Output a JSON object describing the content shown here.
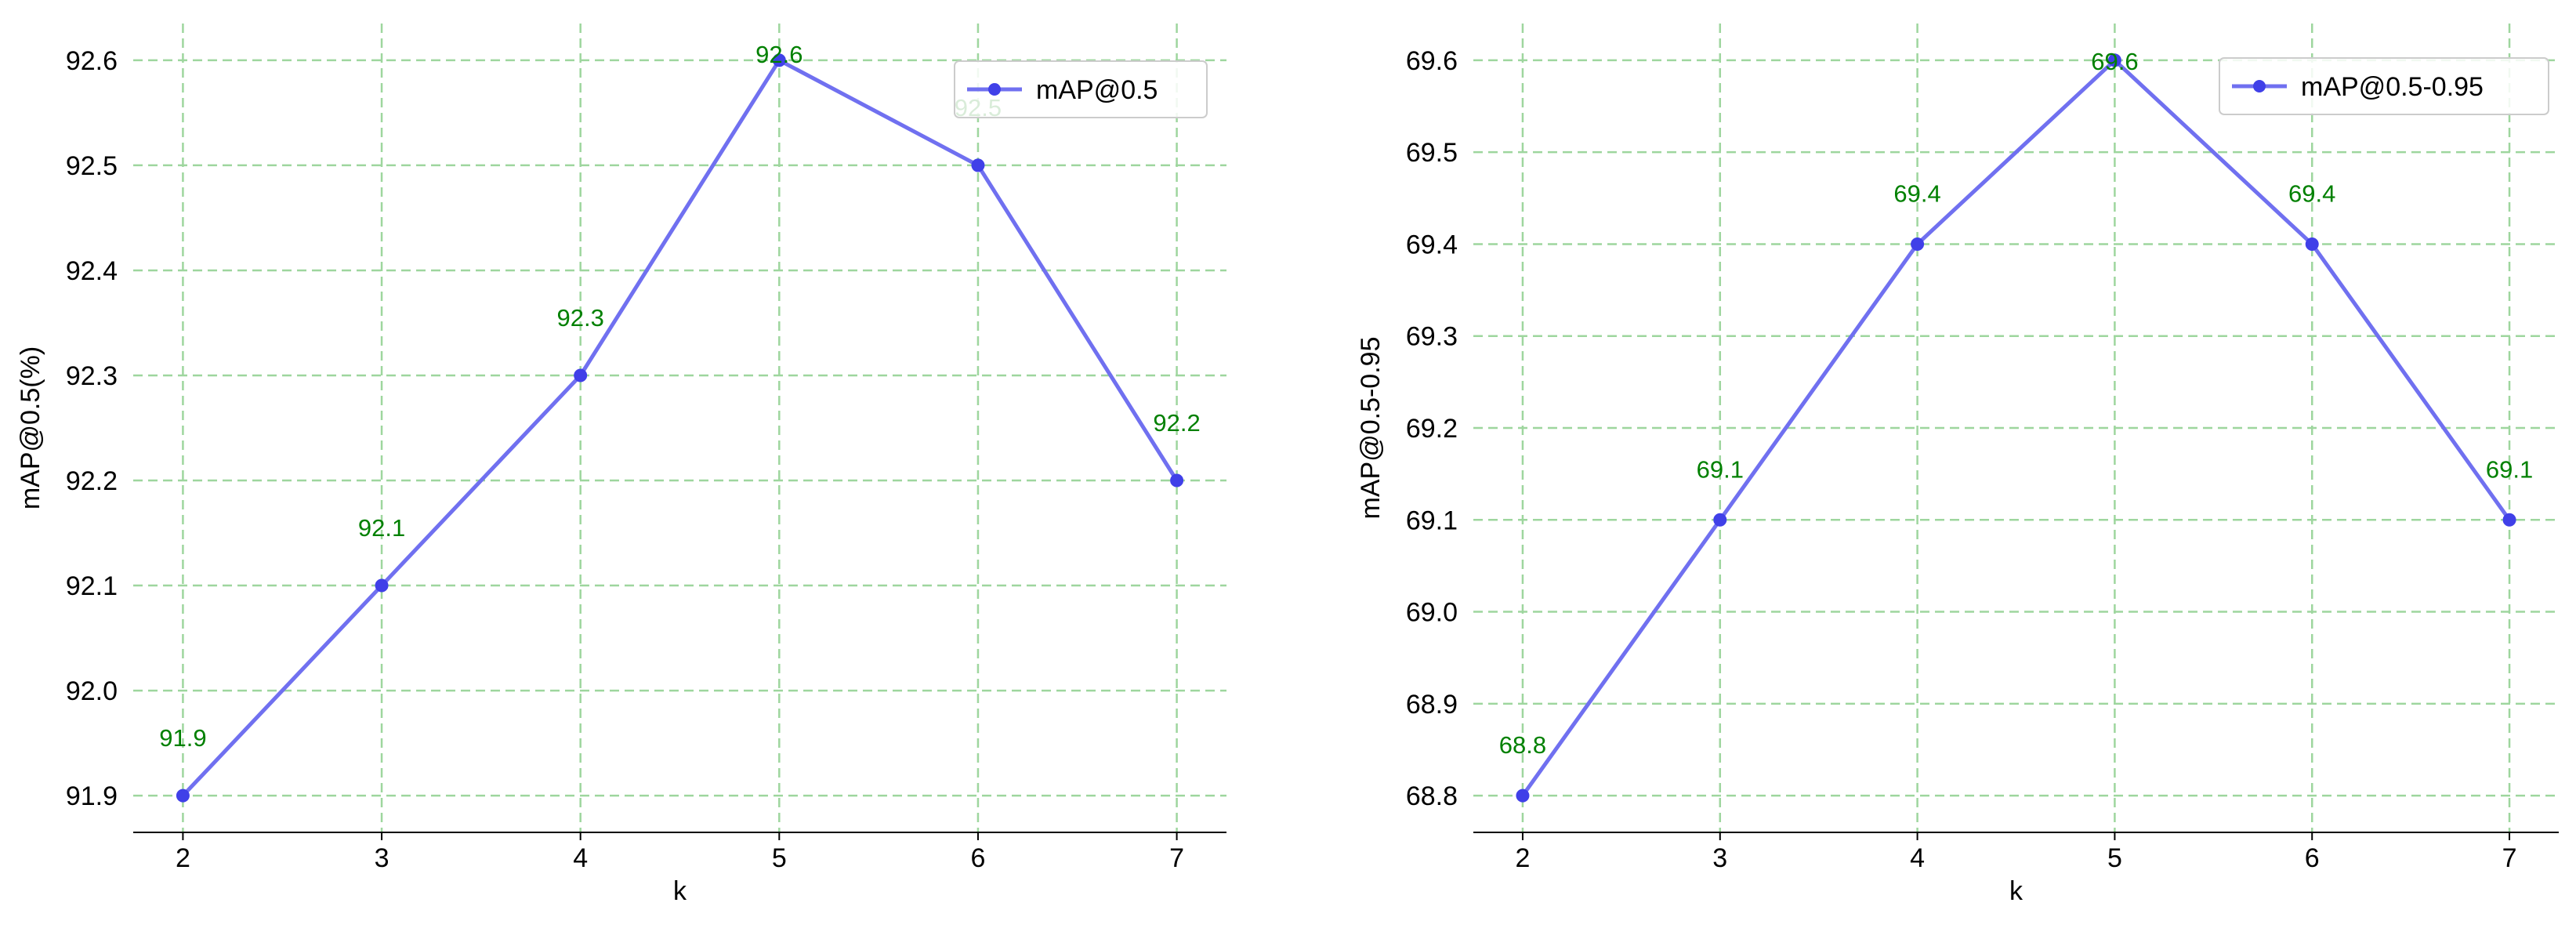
{
  "chart_data": [
    {
      "type": "line",
      "x": [
        2,
        3,
        4,
        5,
        6,
        7
      ],
      "series": [
        {
          "name": "mAP@0.5",
          "values": [
            91.9,
            92.1,
            92.3,
            92.6,
            92.5,
            92.2
          ]
        }
      ],
      "data_labels": [
        "91.9",
        "92.1",
        "92.3",
        "92.6",
        "92.5",
        "92.2"
      ],
      "xlabel": "k",
      "ylabel": "mAP@0.5(%)",
      "x_ticks": [
        "2",
        "3",
        "4",
        "5",
        "6",
        "7"
      ],
      "y_ticks": [
        "91.9",
        "92.0",
        "92.1",
        "92.2",
        "92.3",
        "92.4",
        "92.5",
        "92.6"
      ],
      "xlim": [
        1.75,
        7.25
      ],
      "ylim": [
        91.865,
        92.635
      ],
      "grid": true,
      "legend_position": "upper right",
      "line_color": "#7070f0",
      "marker_color": "#4040e8",
      "label_color": "#008000",
      "grid_color": "#9ed69e"
    },
    {
      "type": "line",
      "x": [
        2,
        3,
        4,
        5,
        6,
        7
      ],
      "series": [
        {
          "name": "mAP@0.5-0.95",
          "values": [
            68.8,
            69.1,
            69.4,
            69.6,
            69.4,
            69.1
          ]
        }
      ],
      "data_labels": [
        "68.8",
        "69.1",
        "69.4",
        "69.6",
        "69.4",
        "69.1"
      ],
      "xlabel": "k",
      "ylabel": "mAP@0.5-0.95",
      "x_ticks": [
        "2",
        "3",
        "4",
        "5",
        "6",
        "7"
      ],
      "y_ticks": [
        "68.8",
        "68.9",
        "69.0",
        "69.1",
        "69.2",
        "69.3",
        "69.4",
        "69.5",
        "69.6"
      ],
      "xlim": [
        1.75,
        7.25
      ],
      "ylim": [
        68.76,
        69.64
      ],
      "grid": true,
      "legend_position": "upper right",
      "line_color": "#7070f0",
      "marker_color": "#4040e8",
      "label_color": "#008000",
      "grid_color": "#9ed69e"
    }
  ]
}
